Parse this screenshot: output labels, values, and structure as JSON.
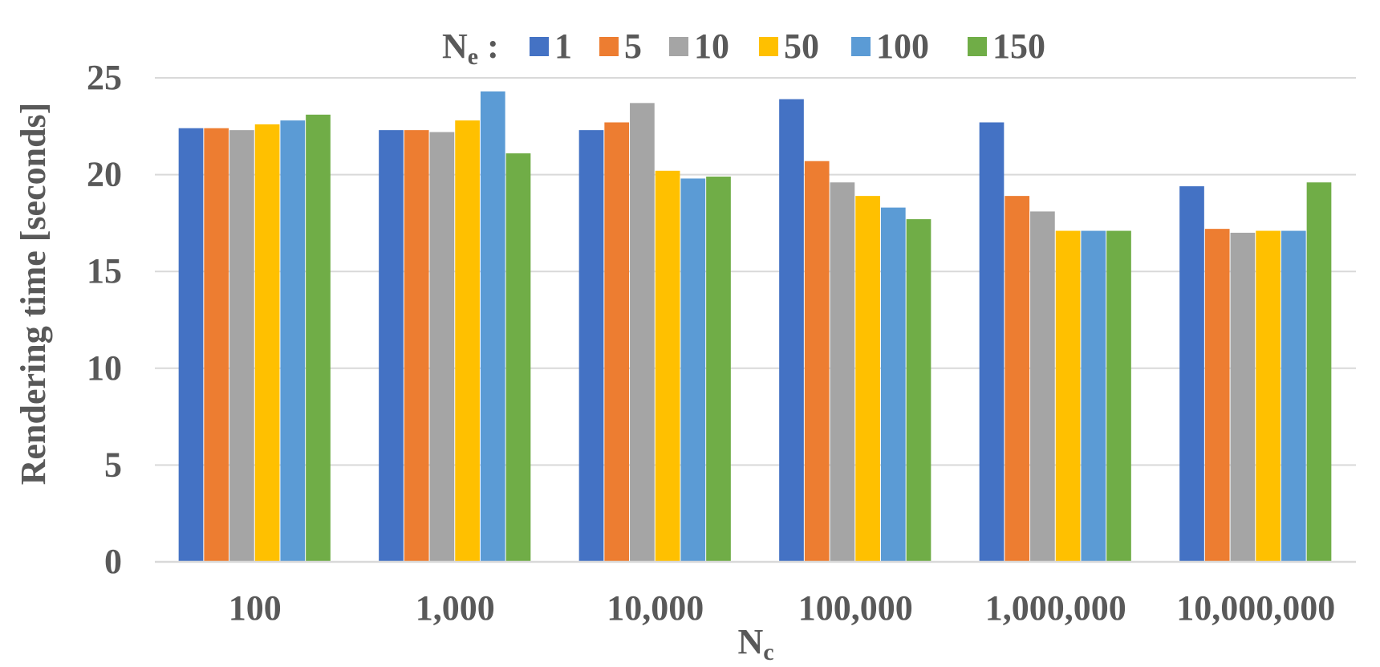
{
  "chart_data": {
    "type": "bar",
    "categories": [
      "100",
      "1,000",
      "10,000",
      "100,000",
      "1,000,000",
      "10,000,000"
    ],
    "series": [
      {
        "name": "1",
        "color": "#4472C4",
        "values": [
          22.4,
          22.3,
          22.3,
          23.9,
          22.7,
          19.4
        ]
      },
      {
        "name": "5",
        "color": "#ED7D31",
        "values": [
          22.4,
          22.3,
          22.7,
          20.7,
          18.9,
          17.2
        ]
      },
      {
        "name": "10",
        "color": "#A5A5A5",
        "values": [
          22.3,
          22.2,
          23.7,
          19.6,
          18.1,
          17.0
        ]
      },
      {
        "name": "50",
        "color": "#FFC000",
        "values": [
          22.6,
          22.8,
          20.2,
          18.9,
          17.1,
          17.1
        ]
      },
      {
        "name": "100",
        "color": "#5B9BD5",
        "values": [
          22.8,
          24.3,
          19.8,
          18.3,
          17.1,
          17.1
        ]
      },
      {
        "name": "150",
        "color": "#70AD47",
        "values": [
          23.1,
          21.1,
          19.9,
          17.7,
          17.1,
          19.6
        ]
      }
    ],
    "legend_title": {
      "main": "N",
      "sub": "e",
      "suffix": " :"
    },
    "xlabel": {
      "main": "N",
      "sub": "c"
    },
    "ylabel": "Rendering time [seconds]",
    "ylim": [
      0,
      25
    ],
    "yticks": [
      0,
      5,
      10,
      15,
      20,
      25
    ],
    "grid": true,
    "legend_position": "top"
  }
}
